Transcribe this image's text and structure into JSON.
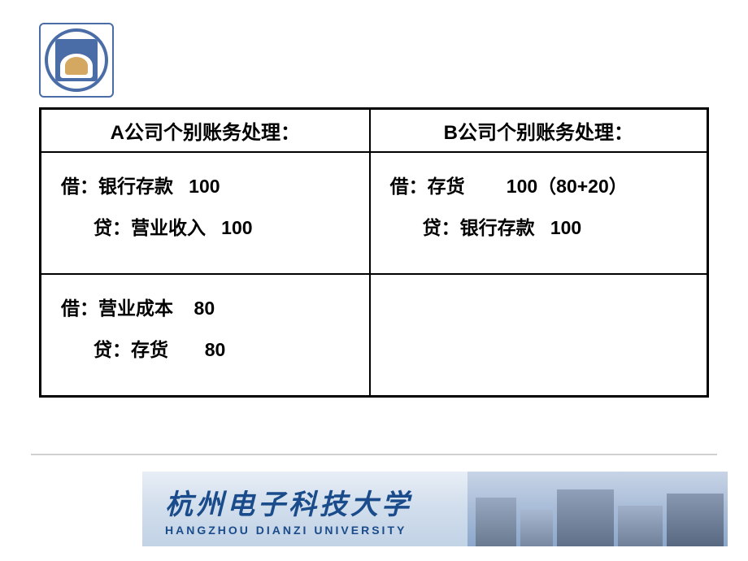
{
  "university": {
    "name_cn": "杭州电子科技大学",
    "name_en": "HANGZHOU DIANZI UNIVERSITY",
    "logo_ring_text": "HANGZHOU DIANZI UNIVERSITY"
  },
  "table": {
    "headers": {
      "col_a": "A公司个别账务处理：",
      "col_b": "B公司个别账务处理："
    },
    "row1": {
      "a": {
        "line1": "借：银行存款   100",
        "line2": "贷：营业收入   100"
      },
      "b": {
        "line1": "借：存货        100（80+20）",
        "line2": "贷：银行存款   100"
      }
    },
    "row2": {
      "a": {
        "line1": "借：营业成本    80",
        "line2": "贷：存货       80"
      },
      "b": {
        "line1": "",
        "line2": ""
      }
    }
  },
  "styling": {
    "page_bg": "#ffffff",
    "table_border": "#000000",
    "header_fontsize": 24,
    "cell_fontsize": 23,
    "font_weight": "bold",
    "logo_border": "#4a6da8",
    "footer_gradient_top": "#e8eef6",
    "footer_gradient_bottom": "#c2d3e6",
    "footer_text_color": "#1a4b8a",
    "divider_color": "#d0d0d0"
  }
}
